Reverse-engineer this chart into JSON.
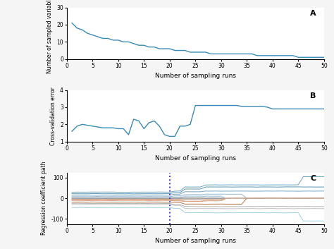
{
  "panel_A_label": "A",
  "panel_B_label": "B",
  "panel_C_label": "C",
  "xlabel": "Number of sampling runs",
  "ylabel_A": "Number of sampled variables",
  "ylabel_B": "Cross-validation error",
  "ylabel_C": "Regression coefficient path",
  "xlim": [
    0,
    50
  ],
  "ylim_A": [
    0,
    30
  ],
  "ylim_B": [
    1,
    4
  ],
  "ylim_C": [
    -125,
    125
  ],
  "xticks": [
    0,
    5,
    10,
    15,
    20,
    25,
    30,
    35,
    40,
    45,
    50
  ],
  "yticks_A": [
    0,
    10,
    20,
    30
  ],
  "yticks_B": [
    1,
    2,
    3,
    4
  ],
  "yticks_C": [
    -100,
    0,
    100
  ],
  "line_color_AB": "#3a8ab5",
  "dotted_line_x": 20,
  "dotted_line_color": "#3a3acc",
  "background_color": "#f5f5f5"
}
